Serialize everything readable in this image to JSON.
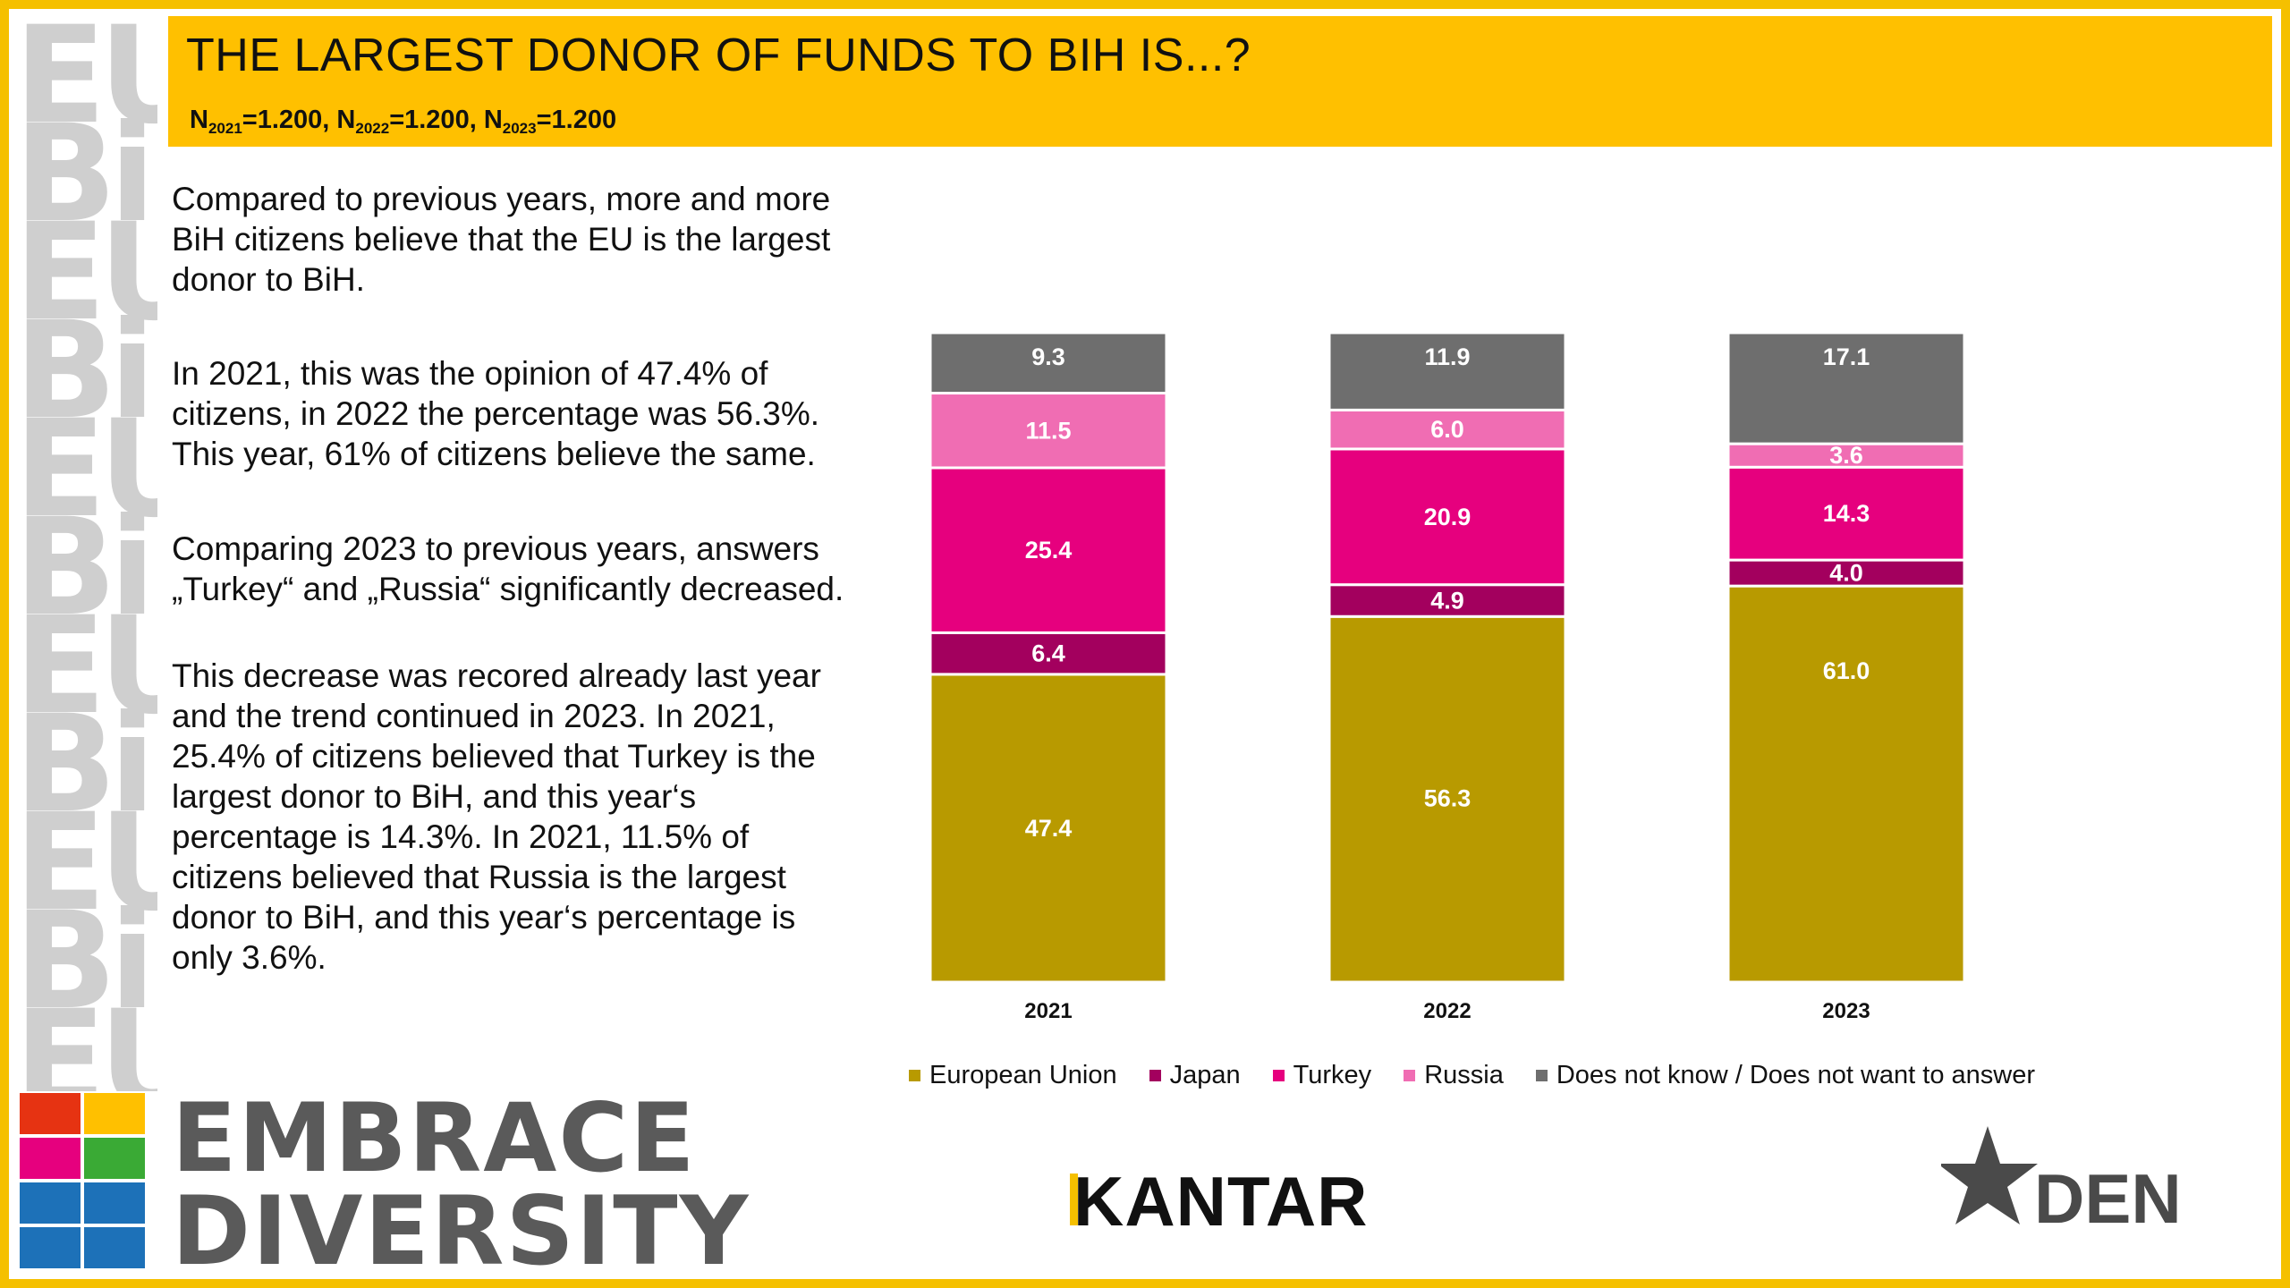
{
  "header": {
    "title": "THE LARGEST DONOR OF FUNDS TO BIH IS...?",
    "n_samples": [
      {
        "label": "N",
        "year": "2021",
        "value": "=1.200, "
      },
      {
        "label": "N",
        "year": "2022",
        "value": "=1.200, "
      },
      {
        "label": "N",
        "year": "2023",
        "value": "=1.200"
      }
    ]
  },
  "text": {
    "p1": "Compared to previous years, more and more BiH citizens believe that the EU is the largest donor to BiH.",
    "p2": "In 2021, this was the opinion of 47.4% of citizens, in 2022 the percentage was 56.3%. This year, 61% of citizens believe the same.",
    "p3": "Comparing 2023 to previous years, answers „Turkey“ and „Russia“ significantly decreased.",
    "p4": "This decrease was recored already last year and the trend continued in 2023. In 2021, 25.4% of citizens believed that Turkey is the largest donor to BiH, and this year‘s percentage is 14.3%. In 2021, 11.5% of citizens believed that Russia is the largest donor to BiH, and this year‘s percentage is only 3.6%."
  },
  "chart_data": {
    "type": "bar",
    "stacked": true,
    "categories": [
      "2021",
      "2022",
      "2023"
    ],
    "series": [
      {
        "name": "European Union",
        "color": "#b89a00",
        "values": [
          47.4,
          56.3,
          61.0
        ]
      },
      {
        "name": "Japan",
        "color": "#a3005e",
        "values": [
          6.4,
          4.9,
          4.0
        ]
      },
      {
        "name": "Turkey",
        "color": "#e6007e",
        "values": [
          25.4,
          20.9,
          14.3
        ]
      },
      {
        "name": "Russia",
        "color": "#f06db3",
        "values": [
          11.5,
          6.0,
          3.6
        ]
      },
      {
        "name": "Does not know / Does not want to answer",
        "color": "#6e6e6e",
        "values": [
          9.3,
          11.9,
          17.1
        ]
      }
    ],
    "value_labels": [
      [
        "47.4",
        "56.3",
        "61.0"
      ],
      [
        "6.4",
        "4.9",
        "4.0"
      ],
      [
        "25.4",
        "20.9",
        "14.3"
      ],
      [
        "11.5",
        "6.0",
        "3.6"
      ],
      [
        "9.3",
        "11.9",
        "17.1"
      ]
    ],
    "ylim": [
      0,
      100
    ],
    "grid": false,
    "legend_position": "bottom"
  },
  "logos": {
    "embrace_line1": "EMBRACE",
    "embrace_line2": "DIVERSITY",
    "kantar": "KANTAR",
    "den": "DEN"
  },
  "colors": {
    "accent": "#ffc000",
    "frame": "#f5c000"
  }
}
